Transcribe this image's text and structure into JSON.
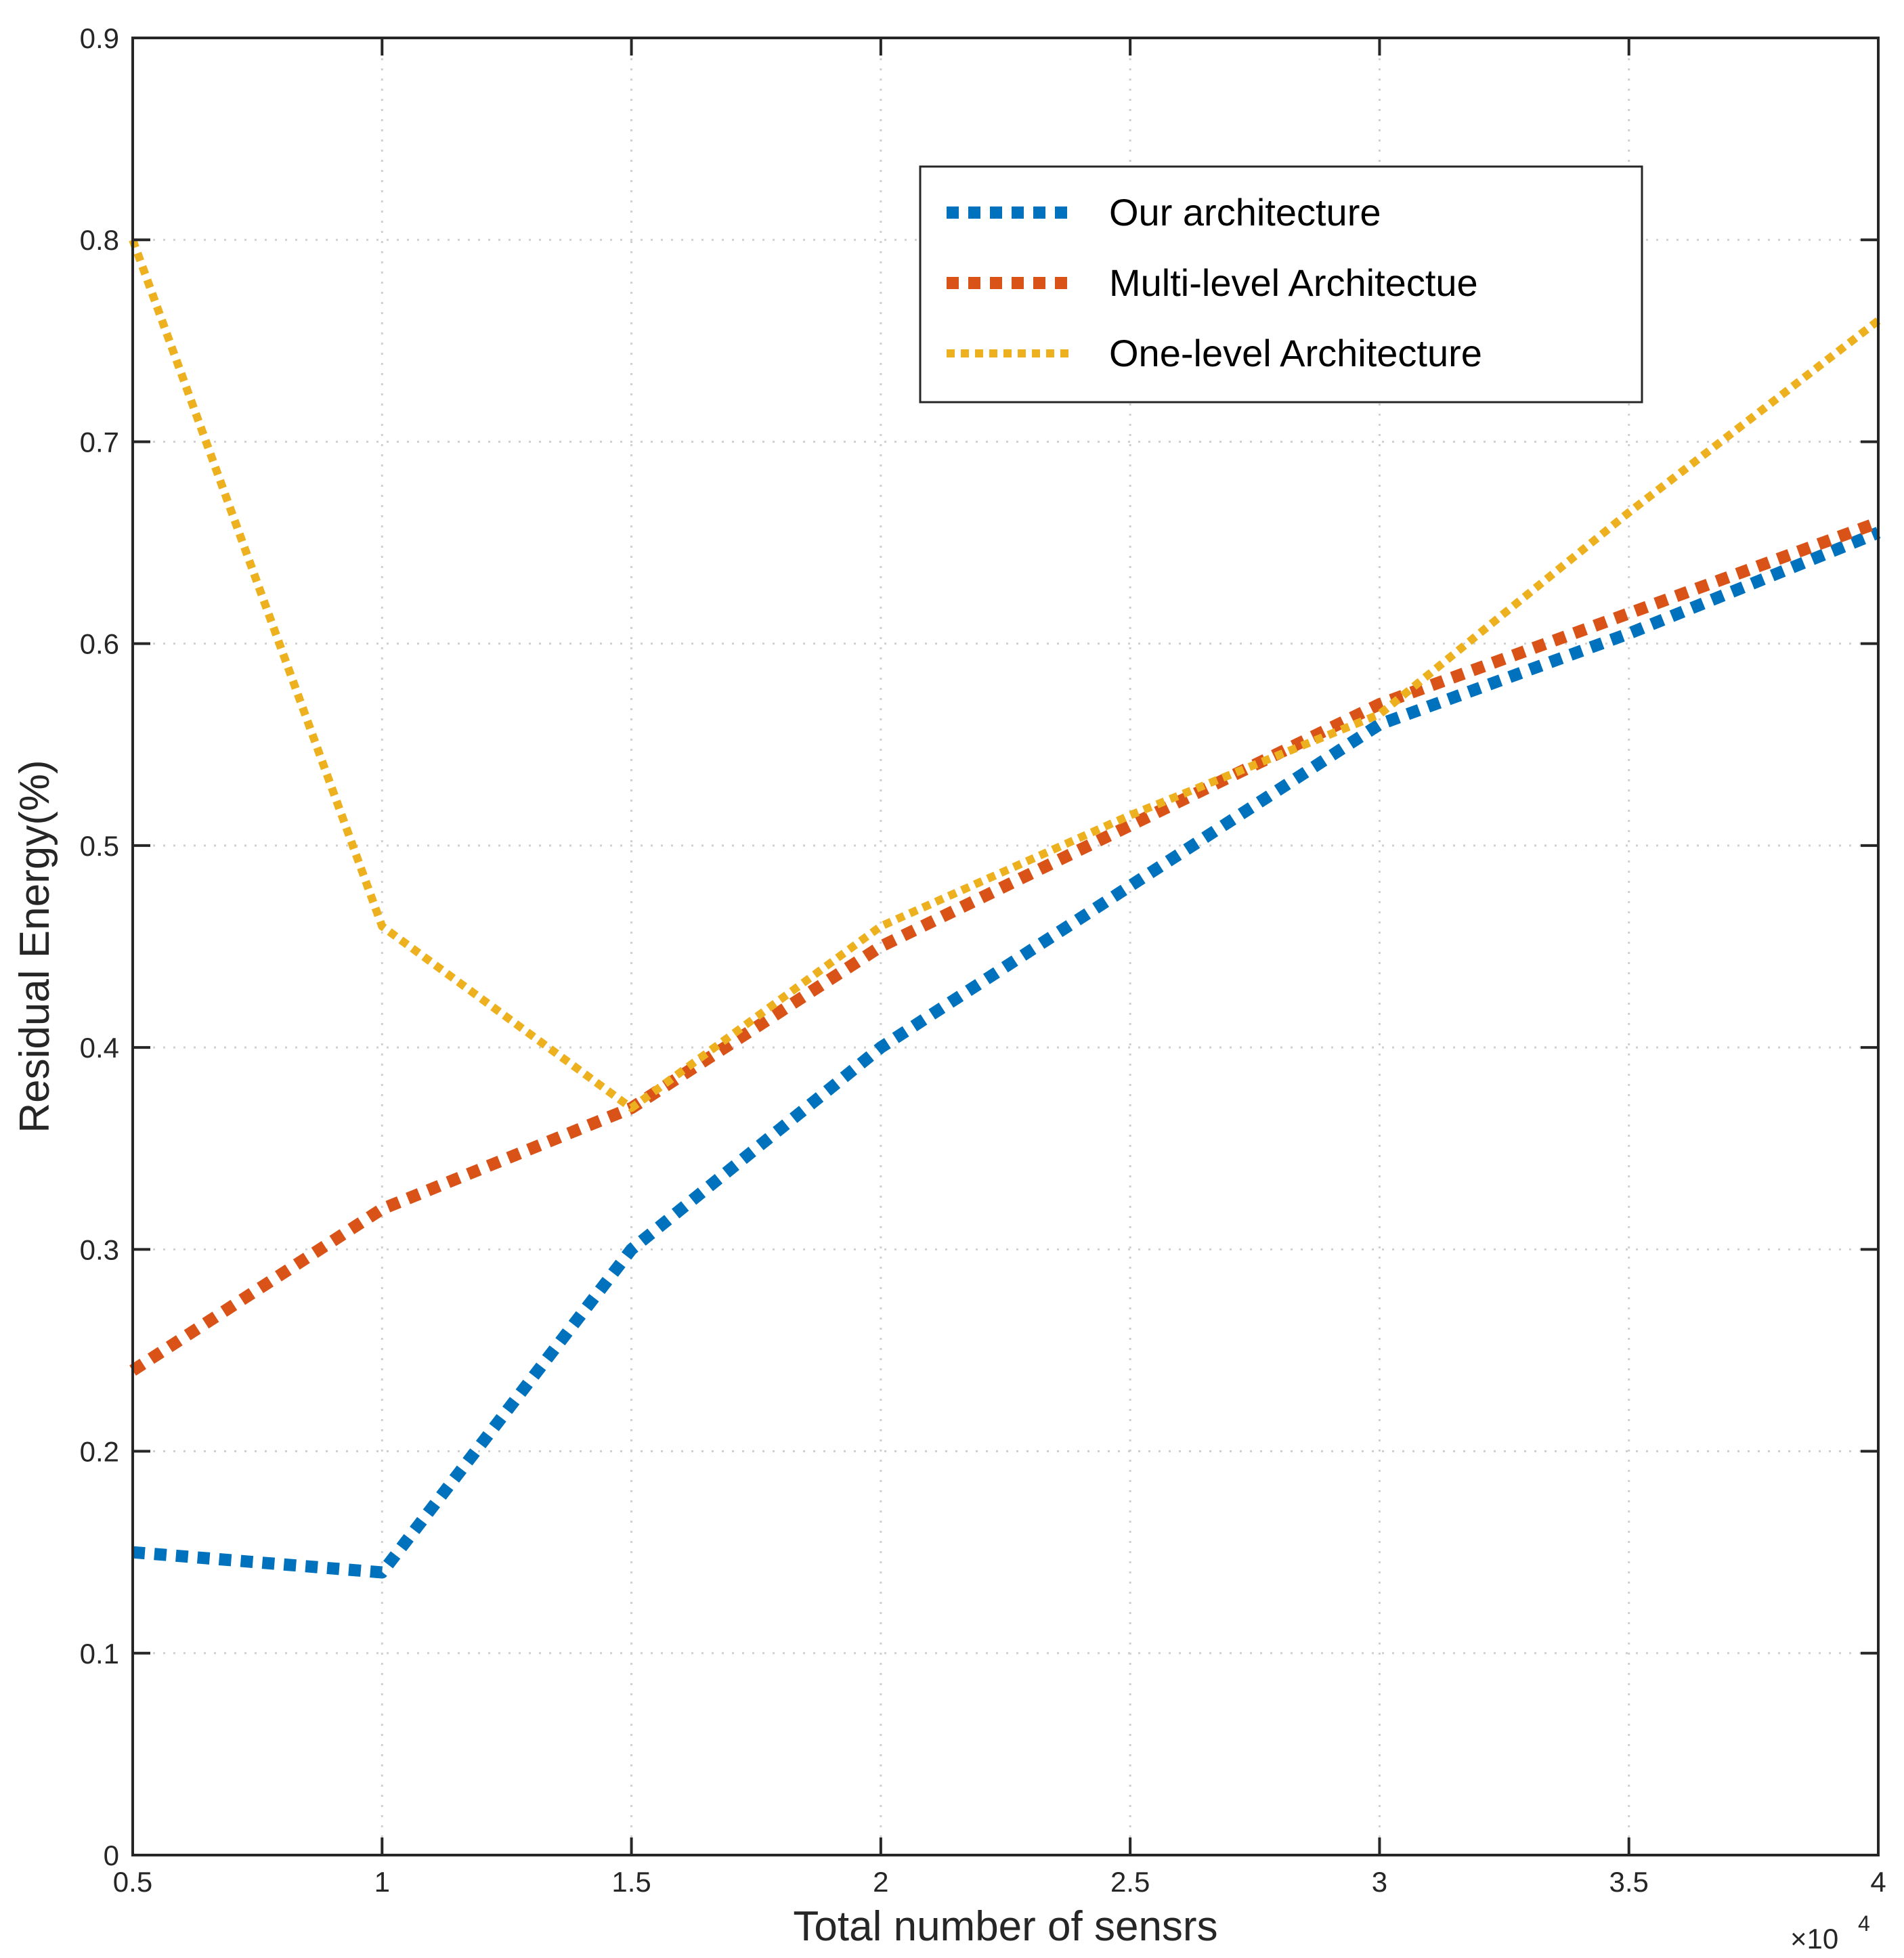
{
  "chart_data": {
    "type": "line",
    "title": "",
    "xlabel": "Total number of sensrs",
    "ylabel": "Residual Energy(%)",
    "x_exponent_label": "×10",
    "x_exponent_power": "4",
    "x": [
      0.5,
      1,
      1.5,
      2,
      2.5,
      3,
      3.5,
      4
    ],
    "xlim": [
      0.5,
      4
    ],
    "ylim": [
      0,
      0.9
    ],
    "x_ticks": [
      "0.5",
      "1",
      "1.5",
      "2",
      "2.5",
      "3",
      "3.5",
      "4"
    ],
    "y_ticks": [
      "0",
      "0.1",
      "0.2",
      "0.3",
      "0.4",
      "0.5",
      "0.6",
      "0.7",
      "0.8",
      "0.9"
    ],
    "grid": true,
    "legend_position": "top-right",
    "series": [
      {
        "name": "Our architecture",
        "color": "#0072BD",
        "values": [
          0.15,
          0.14,
          0.3,
          0.4,
          0.48,
          0.56,
          0.605,
          0.655
        ]
      },
      {
        "name": "Multi-level Architectue",
        "color": "#D95319",
        "values": [
          0.24,
          0.32,
          0.37,
          0.45,
          0.51,
          0.57,
          0.615,
          0.66
        ]
      },
      {
        "name": "One-level Architecture",
        "color": "#EDB120",
        "values": [
          0.8,
          0.46,
          0.37,
          0.46,
          0.515,
          0.565,
          0.665,
          0.76
        ]
      }
    ]
  }
}
